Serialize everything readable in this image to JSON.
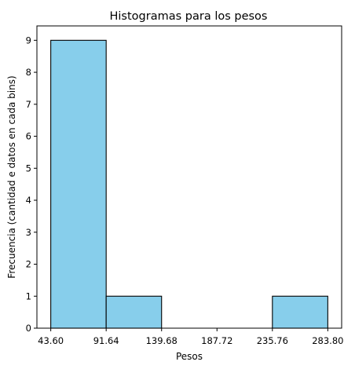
{
  "chart_data": {
    "type": "bar",
    "title": "Histogramas para los pesos",
    "xlabel": "Pesos",
    "ylabel": "Frecuencia (cantidad e datos en cada bins)",
    "bin_edges": [
      43.6,
      91.64,
      139.68,
      187.72,
      235.76,
      283.8
    ],
    "x_tick_labels": [
      "43.60",
      "91.64",
      "139.68",
      "187.72",
      "235.76",
      "283.80"
    ],
    "values": [
      9,
      1,
      0,
      0,
      1
    ],
    "ylim": [
      0,
      9.45
    ],
    "y_ticks": [
      0,
      1,
      2,
      3,
      4,
      5,
      6,
      7,
      8,
      9
    ],
    "bar_color": "#87CEEB",
    "edge_color": "#000000",
    "grid": false,
    "legend": "none"
  }
}
